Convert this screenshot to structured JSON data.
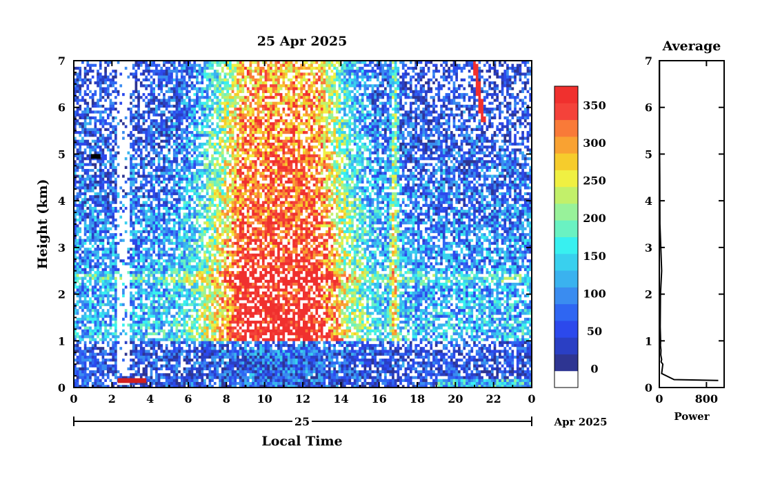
{
  "chart_data": [
    {
      "type": "heatmap",
      "title": "25 Apr 2025",
      "xlabel": "Local Time",
      "ylabel": "Height (km)",
      "x_ticks": [
        "0",
        "2",
        "4",
        "6",
        "8",
        "10",
        "12",
        "14",
        "16",
        "18",
        "20",
        "22",
        "0"
      ],
      "x_range": [
        0,
        24
      ],
      "y_ticks": [
        "0",
        "1",
        "2",
        "3",
        "4",
        "5",
        "6",
        "7"
      ],
      "y_range": [
        0,
        7
      ],
      "date_bar": {
        "day": "25",
        "month_year": "Apr 2025"
      },
      "colorbar": {
        "ticks": [
          "0",
          "50",
          "100",
          "150",
          "200",
          "250",
          "300",
          "350"
        ],
        "range": [
          -25,
          375
        ],
        "colors": [
          "#ffffff",
          "#2e3592",
          "#2a3fc4",
          "#2c49ec",
          "#2f66f2",
          "#3a8cf0",
          "#3ab2ef",
          "#39d0ee",
          "#38f0f0",
          "#6af2c2",
          "#98f29a",
          "#c2f06a",
          "#f0f042",
          "#f6cc2c",
          "#f9a232",
          "#f97a38",
          "#f4423a",
          "#f0302e"
        ]
      },
      "regions": [
        {
          "name": "boundary layer",
          "t0": 0,
          "t1": 24,
          "h0": 0,
          "h1": 1.0,
          "value": 60
        },
        {
          "name": "daytime enhancement",
          "t0": 7.2,
          "t1": 14.2,
          "h0": 0.8,
          "h1": 7,
          "value": 360
        },
        {
          "name": "cloud layer",
          "t0": 0.9,
          "t1": 1.4,
          "h0": 4.9,
          "h1": 5.0,
          "value": "black"
        },
        {
          "name": "descending echo",
          "t0": 21.0,
          "t1": 21.6,
          "h0": 5.7,
          "h1": 7,
          "value": 380
        }
      ]
    },
    {
      "type": "line",
      "title": "Average",
      "xlabel": "Power",
      "x_ticks": [
        "0",
        "800"
      ],
      "x_range": [
        0,
        1100
      ],
      "y_range": [
        0,
        7
      ],
      "series": [
        {
          "x": [
            1000,
            250,
            40,
            60,
            30,
            40,
            25,
            28,
            20,
            22,
            15,
            20,
            40,
            10,
            8,
            6,
            5,
            5,
            4
          ],
          "y": [
            0.15,
            0.17,
            0.3,
            0.5,
            0.55,
            0.6,
            0.7,
            0.8,
            0.9,
            1.0,
            1.3,
            2.0,
            2.5,
            3.5,
            4.5,
            4.95,
            5.05,
            6.0,
            7.0
          ]
        }
      ]
    }
  ]
}
